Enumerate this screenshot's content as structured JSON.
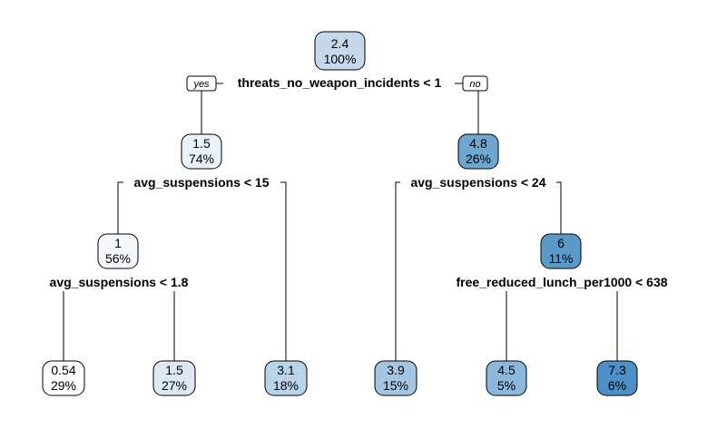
{
  "tree": {
    "branch_labels": {
      "yes": "yes",
      "no": "no"
    },
    "splits": [
      {
        "id": "s0",
        "label": "threats_no_weapon_incidents < 1"
      },
      {
        "id": "s1",
        "label": "avg_suspensions < 15"
      },
      {
        "id": "s2",
        "label": "avg_suspensions < 24"
      },
      {
        "id": "s3",
        "label": "avg_suspensions < 1.8"
      },
      {
        "id": "s4",
        "label": "free_reduced_lunch_per1000 < 638"
      }
    ],
    "nodes": [
      {
        "id": "n0",
        "value": "2.4",
        "percent": "100%",
        "color": "#c6d9ec"
      },
      {
        "id": "n1",
        "value": "1.5",
        "percent": "74%",
        "color": "#eaf2fa"
      },
      {
        "id": "n2",
        "value": "4.8",
        "percent": "26%",
        "color": "#6fa6d0"
      },
      {
        "id": "n3",
        "value": "1",
        "percent": "56%",
        "color": "#f4f8fc"
      },
      {
        "id": "n4",
        "value": "6",
        "percent": "11%",
        "color": "#5a9acb"
      },
      {
        "id": "n5",
        "value": "0.54",
        "percent": "29%",
        "color": "#ffffff"
      },
      {
        "id": "n6",
        "value": "1.5",
        "percent": "27%",
        "color": "#dce9f5"
      },
      {
        "id": "n7",
        "value": "3.1",
        "percent": "18%",
        "color": "#b9d3ea"
      },
      {
        "id": "n8",
        "value": "3.9",
        "percent": "15%",
        "color": "#a4c5e2"
      },
      {
        "id": "n9",
        "value": "4.5",
        "percent": "5%",
        "color": "#8bb8dc"
      },
      {
        "id": "n10",
        "value": "7.3",
        "percent": "6%",
        "color": "#4d8fc6"
      }
    ]
  }
}
